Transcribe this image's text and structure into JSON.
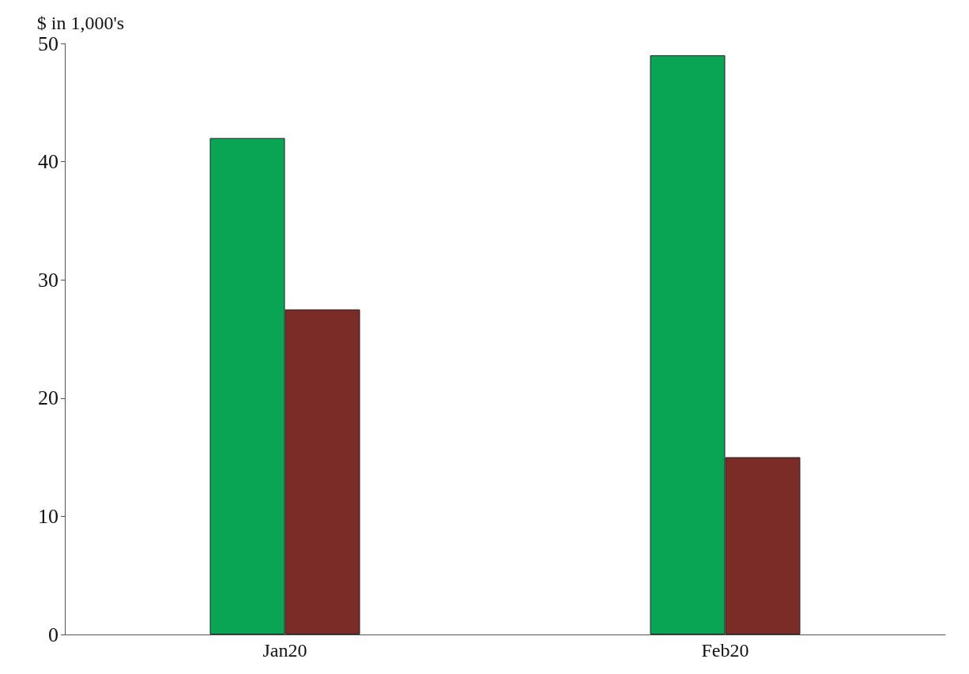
{
  "chart_data": {
    "type": "bar",
    "ylabel": "$ in 1,000's",
    "categories": [
      "Jan20",
      "Feb20"
    ],
    "series": [
      {
        "color": "#0aa455",
        "values": [
          42,
          49
        ]
      },
      {
        "color": "#7b2c26",
        "values": [
          27.5,
          15
        ]
      }
    ],
    "ylim": [
      0,
      50
    ],
    "yticks": [
      0,
      10,
      20,
      30,
      40,
      50
    ],
    "grid": false
  }
}
